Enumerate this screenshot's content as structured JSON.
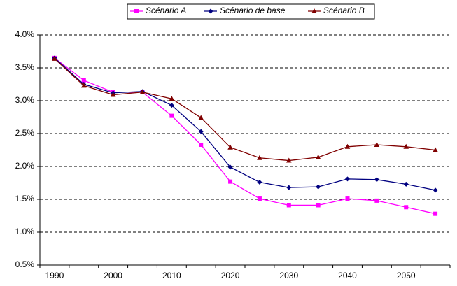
{
  "chart_data": {
    "type": "line",
    "categories": [
      "1990",
      null,
      "2000",
      null,
      "2010",
      null,
      "2020",
      null,
      "2030",
      null,
      "2040",
      null,
      "2050",
      null
    ],
    "series": [
      {
        "name": "Scénario A",
        "color": "#ff00ff",
        "marker": "square",
        "values": [
          3.65,
          3.31,
          3.13,
          3.13,
          2.77,
          2.33,
          1.77,
          1.51,
          1.41,
          1.41,
          1.51,
          1.48,
          1.38,
          1.28
        ]
      },
      {
        "name": "Scénario de base",
        "color": "#000080",
        "marker": "diamond",
        "values": [
          3.65,
          3.25,
          3.12,
          3.14,
          2.93,
          2.53,
          1.99,
          1.76,
          1.68,
          1.69,
          1.81,
          1.8,
          1.73,
          1.64
        ]
      },
      {
        "name": "Scénario B",
        "color": "#800000",
        "marker": "triangle",
        "values": [
          3.64,
          3.23,
          3.09,
          3.13,
          3.03,
          2.74,
          2.29,
          2.13,
          2.09,
          2.14,
          2.3,
          2.33,
          2.3,
          2.25
        ]
      }
    ],
    "ylim": [
      0.5,
      4.0
    ],
    "yticks": [
      {
        "value": 0.5,
        "label": "0.5%"
      },
      {
        "value": 1.0,
        "label": "1.0%"
      },
      {
        "value": 1.5,
        "label": "1.5%"
      },
      {
        "value": 2.0,
        "label": "2.0%"
      },
      {
        "value": 2.5,
        "label": "2.5%"
      },
      {
        "value": 3.0,
        "label": "3.0%"
      },
      {
        "value": 3.5,
        "label": "3.5%"
      },
      {
        "value": 4.0,
        "label": "4.0%"
      }
    ],
    "grid": true,
    "legend": "top"
  }
}
